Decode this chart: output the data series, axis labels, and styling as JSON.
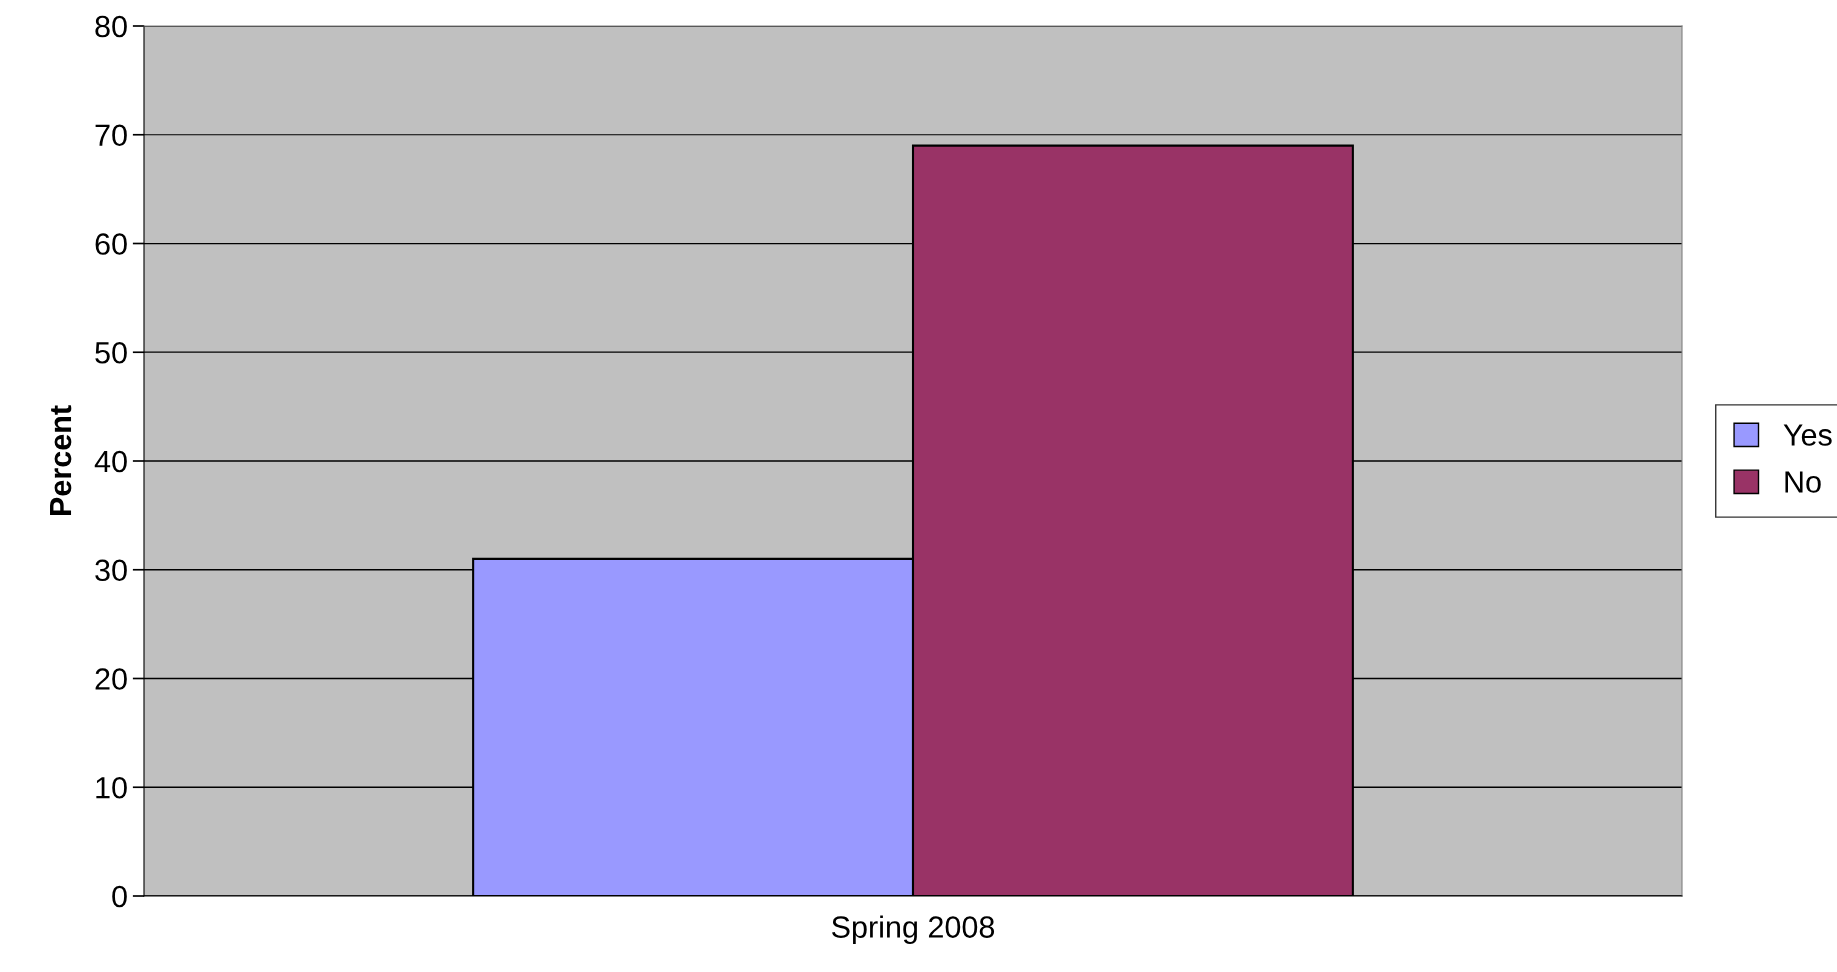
{
  "chart_data": {
    "type": "bar",
    "ylabel": "Percent",
    "categories": [
      "Spring 2008"
    ],
    "series": [
      {
        "name": "Yes",
        "color": "#9999ff",
        "values": [
          31
        ]
      },
      {
        "name": "No",
        "color": "#993366",
        "values": [
          69
        ]
      }
    ],
    "ylim": [
      0,
      80
    ],
    "yticks": [
      0,
      10,
      20,
      30,
      40,
      50,
      60,
      70,
      80
    ],
    "grid": "y",
    "legend": "right"
  }
}
